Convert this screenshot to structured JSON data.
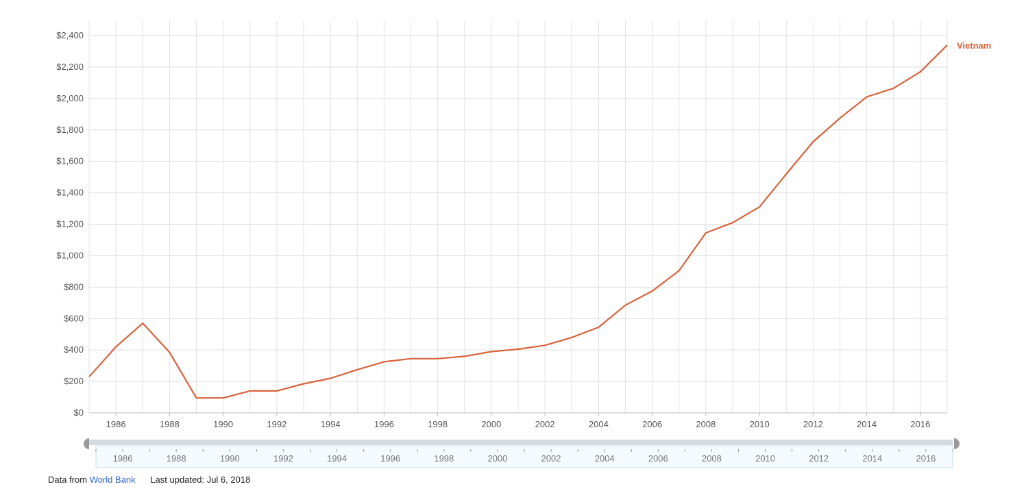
{
  "chart_data": {
    "type": "line",
    "title": "",
    "xlabel": "",
    "ylabel": "",
    "x": [
      1985,
      1986,
      1987,
      1988,
      1989,
      1990,
      1991,
      1992,
      1993,
      1994,
      1995,
      1996,
      1997,
      1998,
      1999,
      2000,
      2001,
      2002,
      2003,
      2004,
      2005,
      2006,
      2007,
      2008,
      2009,
      2010,
      2011,
      2012,
      2013,
      2014,
      2015,
      2016,
      2017
    ],
    "series": [
      {
        "name": "Vietnam",
        "color": "#d9623b",
        "values": [
          230,
          420,
          570,
          385,
          95,
          95,
          140,
          140,
          185,
          220,
          275,
          325,
          345,
          345,
          360,
          390,
          405,
          430,
          480,
          545,
          685,
          775,
          905,
          1145,
          1210,
          1310,
          1520,
          1725,
          1875,
          2010,
          2065,
          2170,
          2340
        ]
      }
    ],
    "xlim": [
      1985,
      2017
    ],
    "ylim": [
      0,
      2400
    ],
    "x_ticks": [
      "1986",
      "1988",
      "1990",
      "1992",
      "1994",
      "1996",
      "1998",
      "2000",
      "2002",
      "2004",
      "2006",
      "2008",
      "2010",
      "2012",
      "2014",
      "2016"
    ],
    "y_ticks": [
      "$0",
      "$200",
      "$400",
      "$600",
      "$800",
      "$1,000",
      "$1,200",
      "$1,400",
      "$1,600",
      "$1,800",
      "$2,000",
      "$2,200",
      "$2,400"
    ],
    "grid": true,
    "legend": "right-end-label",
    "navigator": {
      "labels": [
        "1986",
        "1988",
        "1990",
        "1992",
        "1994",
        "1996",
        "1998",
        "2000",
        "2002",
        "2004",
        "2006",
        "2008",
        "2010",
        "2012",
        "2014",
        "2016"
      ]
    }
  },
  "footer": {
    "prefix": "Data from",
    "source_link": "World Bank",
    "updated": "Last updated: Jul 6, 2018"
  }
}
